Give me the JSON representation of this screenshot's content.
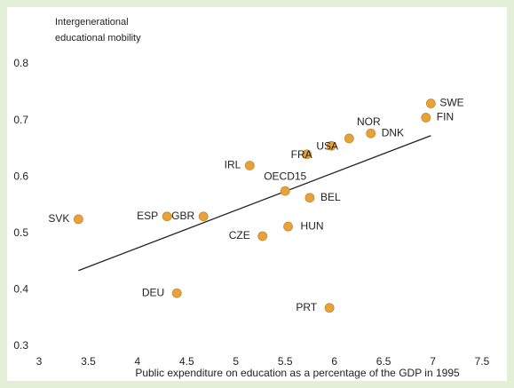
{
  "chart_data": {
    "type": "scatter",
    "ylabel": [
      "Intergenerational",
      "educational mobility"
    ],
    "xlabel": "Public expenditure on education as a percentage of the GDP in 1995",
    "labels": [
      "SVK",
      "ESP",
      "GBR",
      "IRL",
      "OECD15",
      "BEL",
      "FRA",
      "USA",
      "NOR",
      "DNK",
      "SWE",
      "FIN",
      "HUN",
      "CZE",
      "DEU",
      "PRT"
    ],
    "x": [
      3.4,
      4.3,
      4.67,
      5.14,
      5.5,
      5.75,
      5.72,
      5.97,
      6.15,
      6.37,
      6.98,
      6.93,
      5.53,
      5.27,
      4.4,
      5.95
    ],
    "values": [
      0.525,
      0.53,
      0.53,
      0.62,
      0.575,
      0.563,
      0.64,
      0.655,
      0.668,
      0.677,
      0.73,
      0.705,
      0.512,
      0.495,
      0.394,
      0.368
    ],
    "color": "#e8a23c",
    "trend": {
      "x": [
        3.4,
        6.98
      ],
      "values": [
        0.434,
        0.673
      ],
      "color": "#222222"
    },
    "xlim": [
      3,
      7.5
    ],
    "xticks": [
      3,
      3.5,
      4,
      4.5,
      5,
      5.5,
      6,
      6.5,
      7,
      7.5
    ],
    "ylim": [
      0.3,
      0.8
    ],
    "yticks": [
      0.3,
      0.4,
      0.5,
      0.6,
      0.7,
      0.8
    ]
  }
}
